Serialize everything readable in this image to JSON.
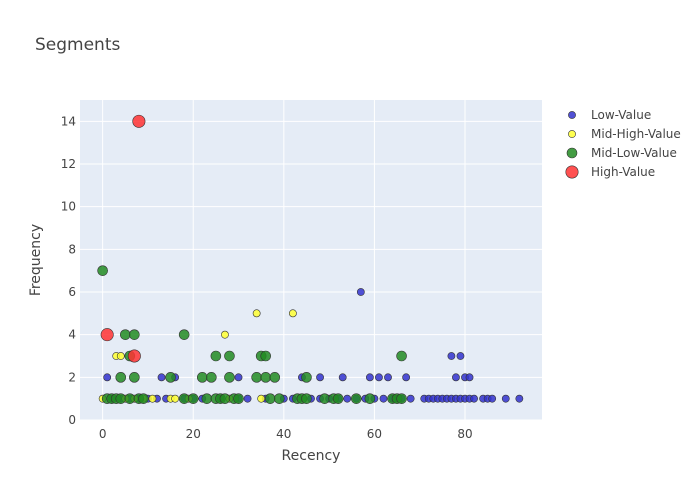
{
  "chart_data": {
    "type": "scatter",
    "title": "Segments",
    "xlabel": "Recency",
    "ylabel": "Frequency",
    "xlim": [
      -5,
      97
    ],
    "ylim": [
      0,
      15
    ],
    "x_ticks": [
      0,
      20,
      40,
      60,
      80
    ],
    "y_ticks": [
      0,
      2,
      4,
      6,
      8,
      10,
      12,
      14
    ],
    "grid": true,
    "legend_position": "top-right",
    "series": [
      {
        "name": "Low-Value",
        "color": "#3333cc",
        "marker_size": "small",
        "points": [
          [
            1,
            2
          ],
          [
            13,
            2
          ],
          [
            16,
            2
          ],
          [
            30,
            2
          ],
          [
            44,
            2
          ],
          [
            48,
            2
          ],
          [
            53,
            2
          ],
          [
            57,
            6
          ],
          [
            59,
            2
          ],
          [
            61,
            2
          ],
          [
            63,
            2
          ],
          [
            67,
            2
          ],
          [
            77,
            3
          ],
          [
            79,
            3
          ],
          [
            78,
            2
          ],
          [
            80,
            2
          ],
          [
            81,
            2
          ],
          [
            2,
            1
          ],
          [
            4,
            1
          ],
          [
            6,
            1
          ],
          [
            8,
            1
          ],
          [
            10,
            1
          ],
          [
            12,
            1
          ],
          [
            14,
            1
          ],
          [
            18,
            1
          ],
          [
            20,
            1
          ],
          [
            22,
            1
          ],
          [
            26,
            1
          ],
          [
            30,
            1
          ],
          [
            32,
            1
          ],
          [
            36,
            1
          ],
          [
            40,
            1
          ],
          [
            42,
            1
          ],
          [
            46,
            1
          ],
          [
            48,
            1
          ],
          [
            50,
            1
          ],
          [
            52,
            1
          ],
          [
            54,
            1
          ],
          [
            56,
            1
          ],
          [
            58,
            1
          ],
          [
            60,
            1
          ],
          [
            62,
            1
          ],
          [
            64,
            1
          ],
          [
            65,
            1
          ],
          [
            66,
            1
          ],
          [
            68,
            1
          ],
          [
            71,
            1
          ],
          [
            72,
            1
          ],
          [
            73,
            1
          ],
          [
            74,
            1
          ],
          [
            75,
            1
          ],
          [
            76,
            1
          ],
          [
            77,
            1
          ],
          [
            78,
            1
          ],
          [
            79,
            1
          ],
          [
            80,
            1
          ],
          [
            81,
            1
          ],
          [
            82,
            1
          ],
          [
            84,
            1
          ],
          [
            85,
            1
          ],
          [
            86,
            1
          ],
          [
            89,
            1
          ],
          [
            92,
            1
          ]
        ]
      },
      {
        "name": "Mid-High-Value",
        "color": "#ffff33",
        "marker_size": "small",
        "points": [
          [
            0,
            1
          ],
          [
            3,
            3
          ],
          [
            4,
            3
          ],
          [
            5,
            1
          ],
          [
            7,
            1
          ],
          [
            9,
            1
          ],
          [
            11,
            1
          ],
          [
            15,
            1
          ],
          [
            16,
            1
          ],
          [
            27,
            4
          ],
          [
            34,
            5
          ],
          [
            42,
            5
          ],
          [
            19,
            1
          ],
          [
            28,
            1
          ],
          [
            35,
            1
          ]
        ]
      },
      {
        "name": "Mid-Low-Value",
        "color": "#228b22",
        "marker_size": "medium",
        "points": [
          [
            0,
            7
          ],
          [
            1,
            1
          ],
          [
            2,
            1
          ],
          [
            3,
            1
          ],
          [
            4,
            2
          ],
          [
            4,
            1
          ],
          [
            5,
            4
          ],
          [
            6,
            3
          ],
          [
            6,
            1
          ],
          [
            7,
            4
          ],
          [
            7,
            2
          ],
          [
            8,
            1
          ],
          [
            9,
            1
          ],
          [
            15,
            2
          ],
          [
            18,
            4
          ],
          [
            18,
            1
          ],
          [
            20,
            1
          ],
          [
            22,
            2
          ],
          [
            23,
            1
          ],
          [
            24,
            2
          ],
          [
            25,
            3
          ],
          [
            25,
            1
          ],
          [
            26,
            1
          ],
          [
            27,
            1
          ],
          [
            28,
            3
          ],
          [
            28,
            2
          ],
          [
            29,
            1
          ],
          [
            30,
            1
          ],
          [
            34,
            2
          ],
          [
            35,
            3
          ],
          [
            36,
            3
          ],
          [
            36,
            2
          ],
          [
            37,
            1
          ],
          [
            38,
            2
          ],
          [
            39,
            1
          ],
          [
            43,
            1
          ],
          [
            44,
            1
          ],
          [
            45,
            2
          ],
          [
            45,
            1
          ],
          [
            49,
            1
          ],
          [
            51,
            1
          ],
          [
            52,
            1
          ],
          [
            56,
            1
          ],
          [
            59,
            1
          ],
          [
            64,
            1
          ],
          [
            65,
            1
          ],
          [
            66,
            3
          ],
          [
            66,
            1
          ]
        ]
      },
      {
        "name": "High-Value",
        "color": "#ff3333",
        "marker_size": "large",
        "points": [
          [
            8,
            14
          ],
          [
            1,
            4
          ],
          [
            7,
            3
          ]
        ]
      }
    ]
  }
}
